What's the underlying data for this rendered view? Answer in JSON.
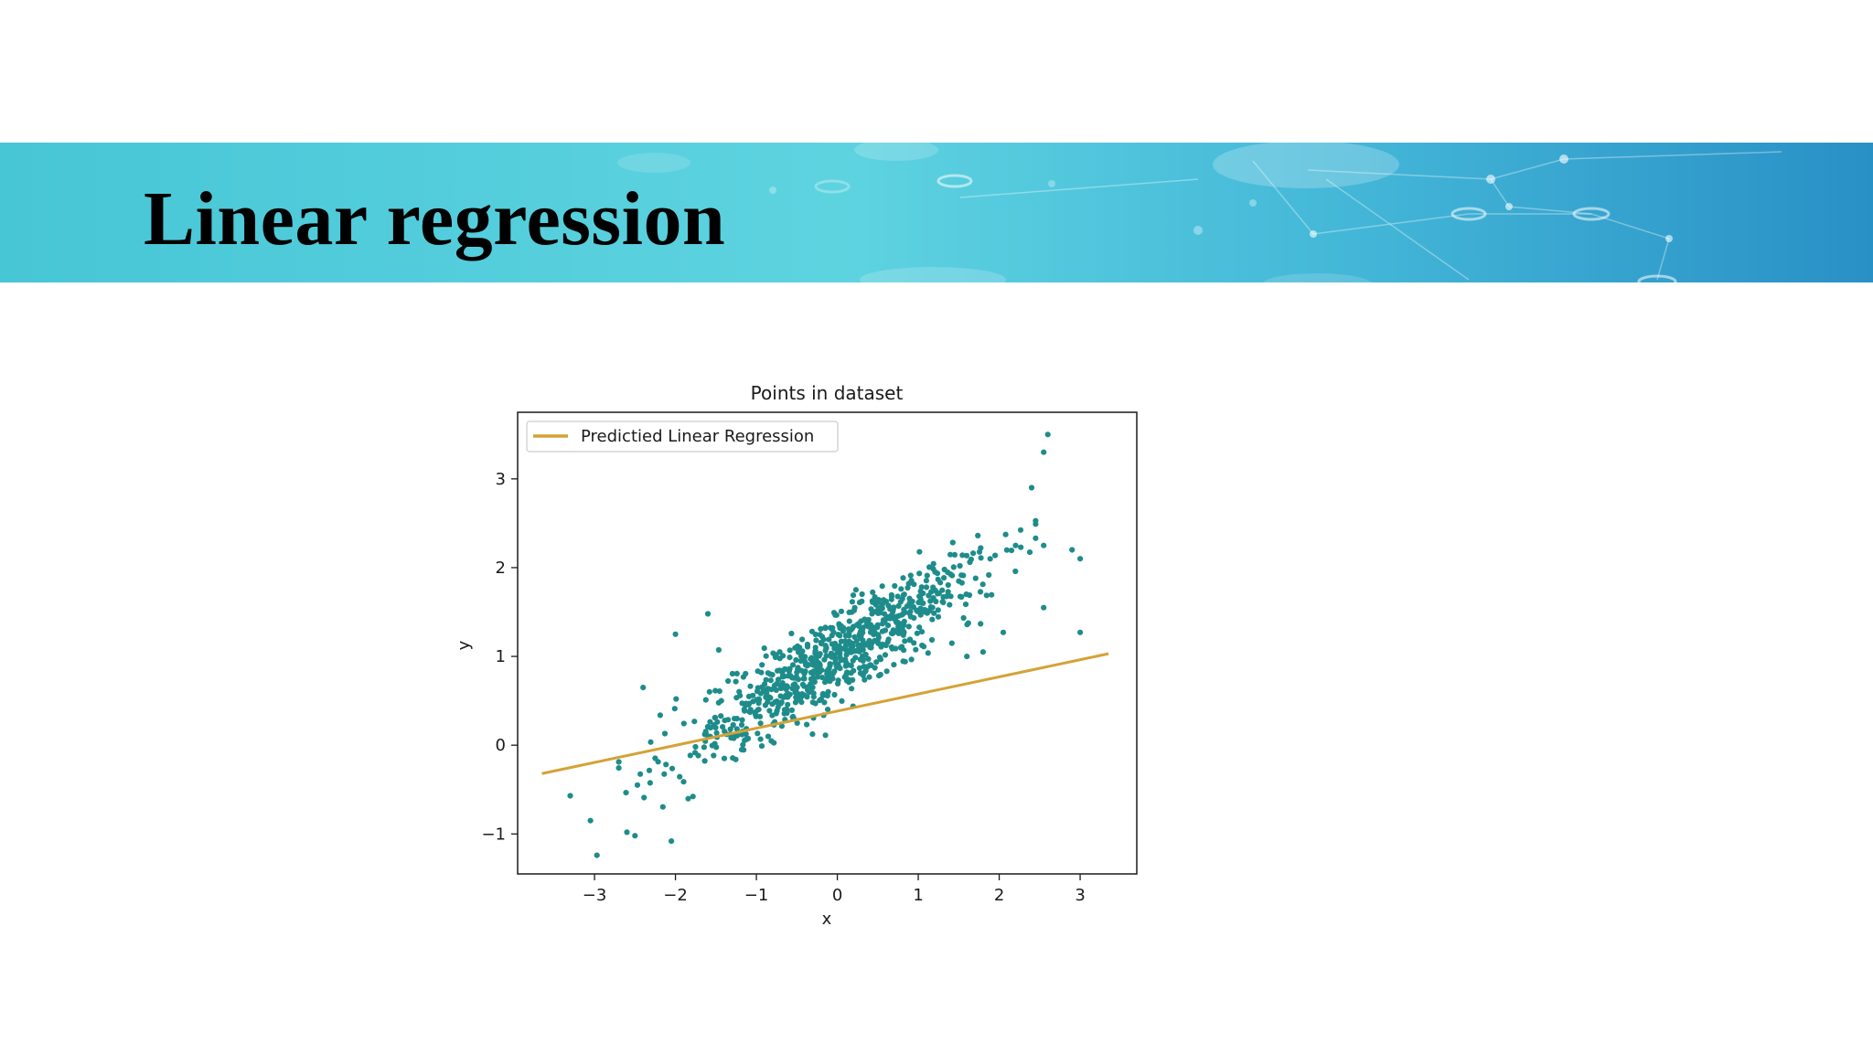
{
  "slide": {
    "title": "Linear regression"
  },
  "colors": {
    "banner_start": "#47c6d6",
    "banner_end": "#2990c6",
    "points": "#1e8c8a",
    "regression_line": "#d4a236",
    "axes": "#1a1a1a"
  },
  "chart_data": {
    "type": "scatter",
    "title": "Points in dataset",
    "xlabel": "x",
    "ylabel": "y",
    "xlim": [
      -3.95,
      3.7
    ],
    "ylim": [
      -1.45,
      3.75
    ],
    "xticks": [
      -3,
      -2,
      -1,
      0,
      1,
      2,
      3
    ],
    "yticks": [
      -1,
      0,
      1,
      2,
      3
    ],
    "grid": false,
    "legend": {
      "location": "upper left",
      "entries": [
        "Predictied Linear Regression"
      ]
    },
    "regression_line": {
      "name": "Predictied Linear Regression",
      "x": [
        -3.65,
        3.35
      ],
      "y": [
        -0.32,
        1.03
      ]
    },
    "scatter": {
      "approx_count": 800,
      "trend": "y ≈ 0.5x + 1",
      "notable_points": [
        [
          -3.3,
          -0.57
        ],
        [
          -3.05,
          -0.85
        ],
        [
          -2.97,
          -1.24
        ],
        [
          -2.6,
          -0.98
        ],
        [
          -2.5,
          -1.02
        ],
        [
          -2.4,
          0.65
        ],
        [
          -2.05,
          -1.08
        ],
        [
          -2.0,
          1.25
        ],
        [
          -1.6,
          1.48
        ],
        [
          2.6,
          3.5
        ],
        [
          2.55,
          3.3
        ],
        [
          2.4,
          2.9
        ],
        [
          2.55,
          2.25
        ],
        [
          2.9,
          2.2
        ],
        [
          3.0,
          2.1
        ],
        [
          3.0,
          1.27
        ],
        [
          2.55,
          1.55
        ],
        [
          2.05,
          1.27
        ],
        [
          1.8,
          1.05
        ],
        [
          1.6,
          1.0
        ]
      ]
    }
  }
}
